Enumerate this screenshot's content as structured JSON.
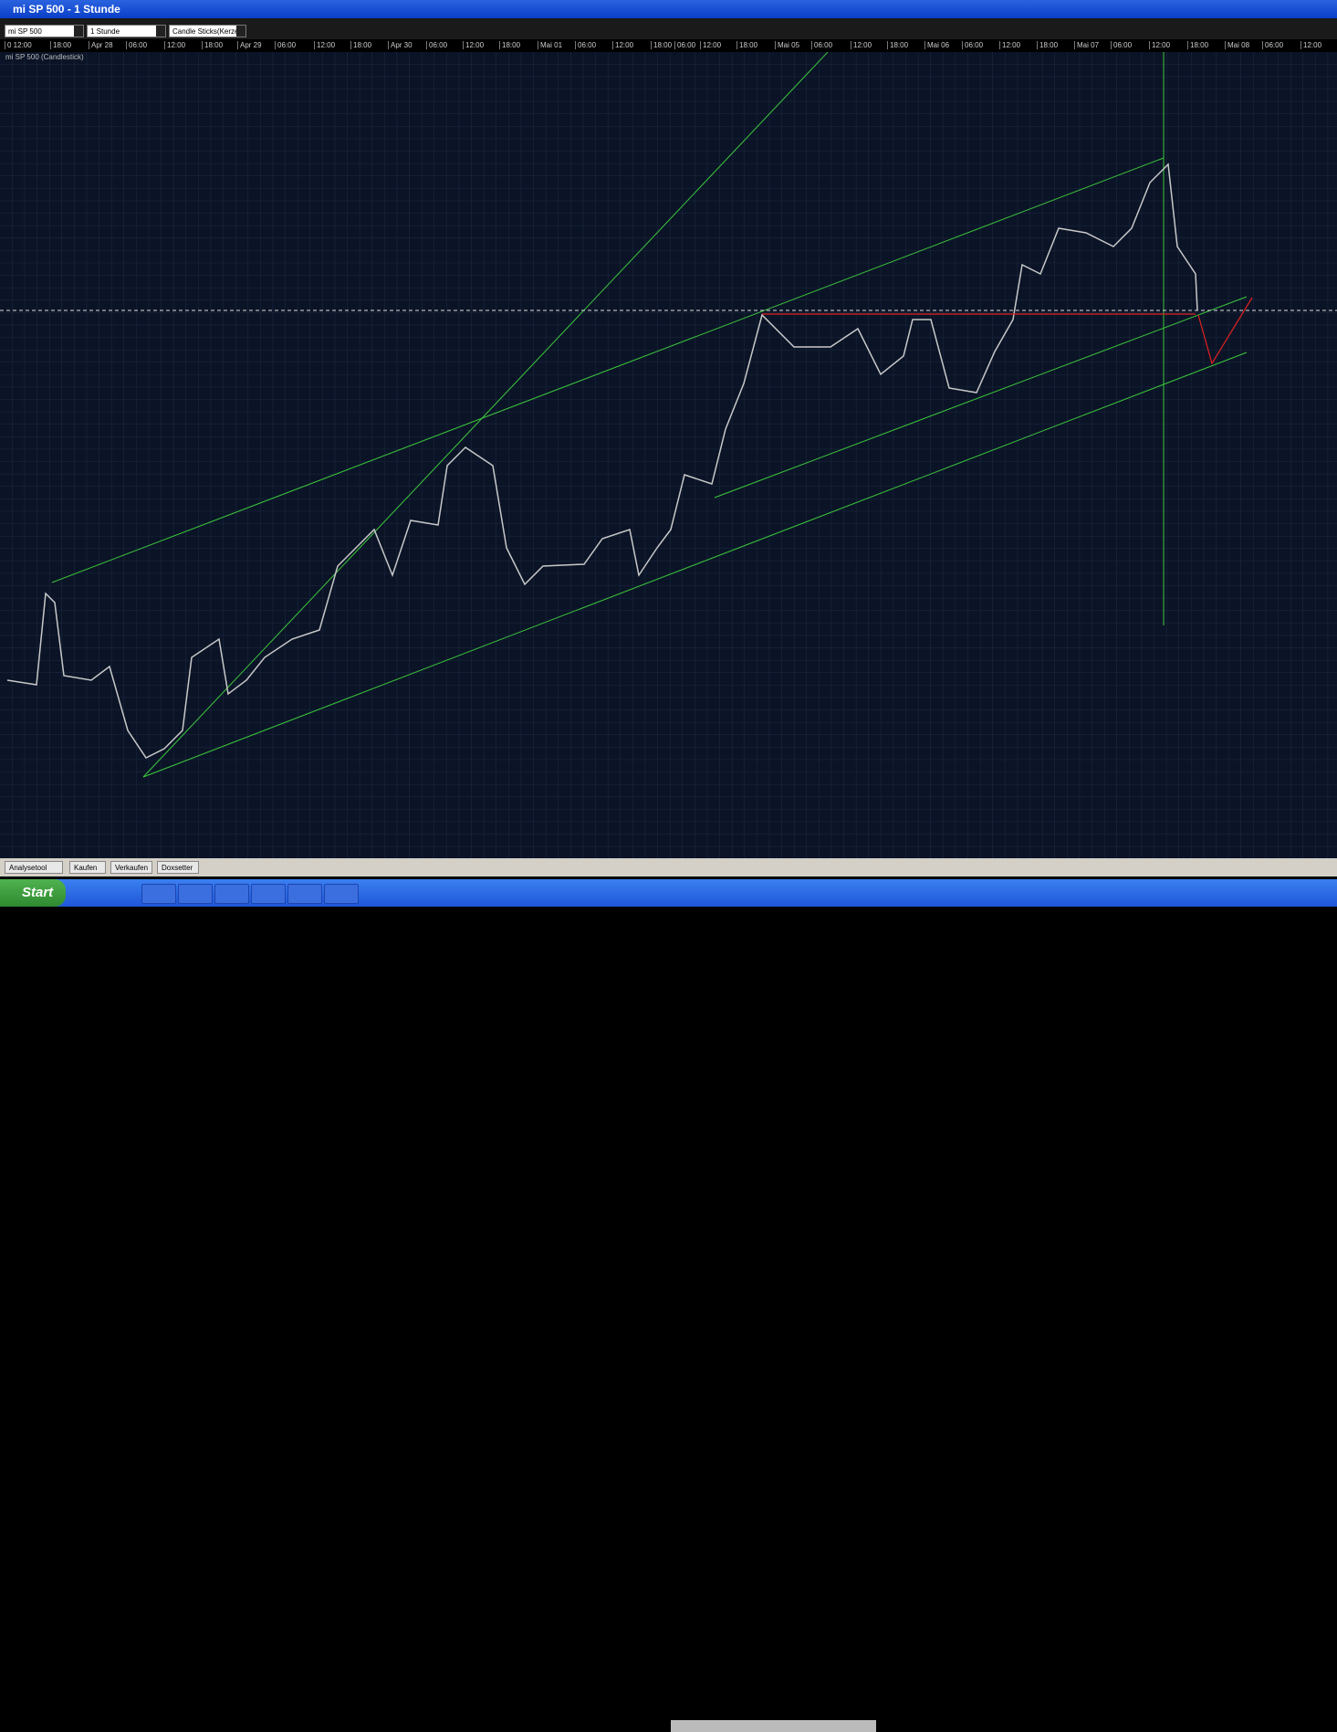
{
  "window": {
    "title": "mi SP 500 - 1 Stunde"
  },
  "toolbar": {
    "instrument": "mi SP 500",
    "interval": "1 Stunde",
    "chart_style": "Candle Sticks(Kerze"
  },
  "time_axis": [
    "0 12:00",
    "18:00",
    "Apr 28",
    "06:00",
    "12:00",
    "18:00",
    "Apr 29",
    "06:00",
    "12:00",
    "18:00",
    "Apr 30",
    "06:00",
    "12:00",
    "18:00",
    "Mai 01",
    "06:00",
    "12:00",
    "18:00",
    "06:00",
    "12:00",
    "18:00",
    "Mai 05",
    "06:00",
    "12:00",
    "18:00",
    "Mai 06",
    "06:00",
    "12:00",
    "18:00",
    "Mai 07",
    "06:00",
    "12:00",
    "18:00",
    "Mai 08",
    "06:00",
    "12:00"
  ],
  "chart_label": "mi SP 500 (Candlestick)",
  "tabs": [
    "Analysetool",
    "Kaufen",
    "Verkaufen",
    "Doxsetter"
  ],
  "taskbar": {
    "start": "Start"
  }
}
